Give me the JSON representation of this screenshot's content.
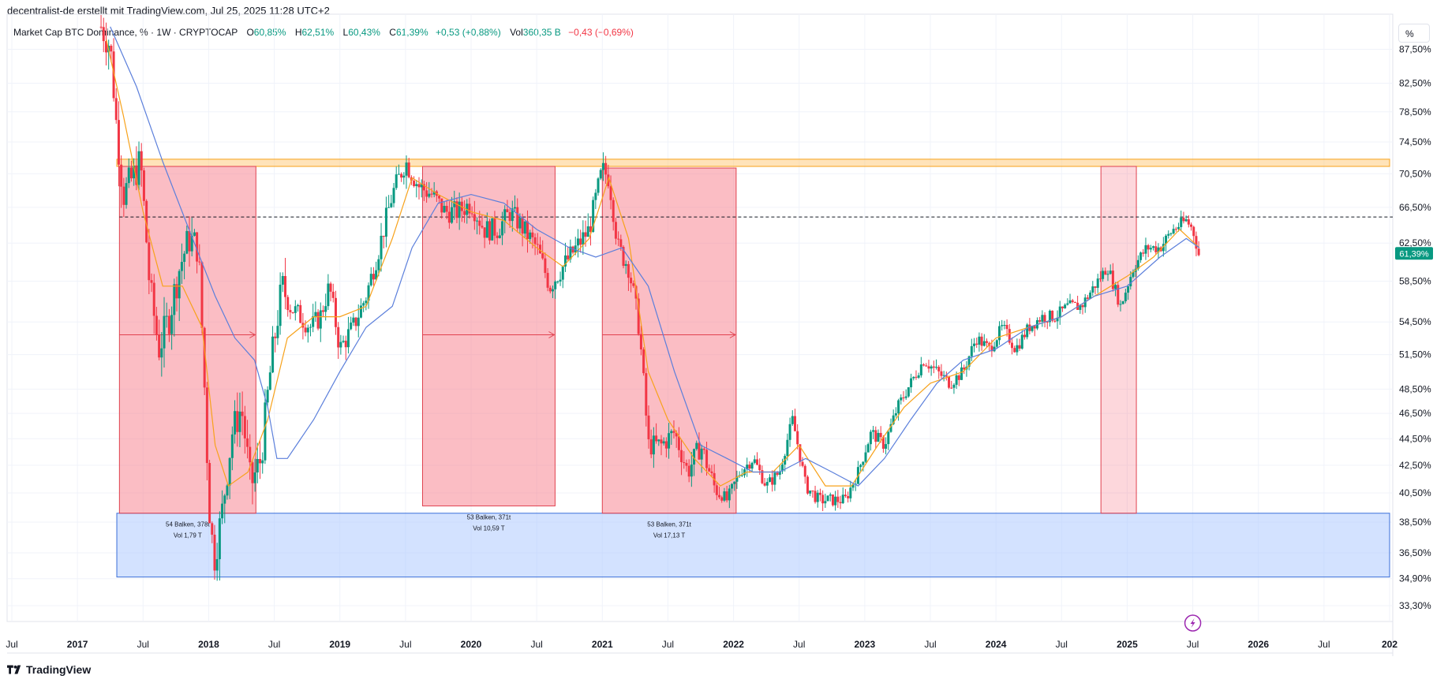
{
  "header": {
    "credit": "decentralist-de erstellt mit TradingView.com, Jul 25, 2025 11:28 UTC+2"
  },
  "legend": {
    "name": "Market Cap BTC Dominance, % · 1W · CRYPTOCAP",
    "o_label": "O",
    "o_value": "60,85%",
    "h_label": "H",
    "h_value": "62,51%",
    "l_label": "L",
    "l_value": "60,43%",
    "c_label": "C",
    "c_value": "61,39%",
    "change": "+0,53 (+0,88%)",
    "vol_label": "Vol",
    "vol_value": "360,35 B",
    "vol_change": "−0,43 (−0,69%)"
  },
  "scale_button": "%",
  "brand": "TradingView",
  "colors": {
    "up": "#089981",
    "down": "#f23645",
    "ma_fast": "#f7a21b",
    "ma_slow": "#5b7fdb",
    "red_zone": "#f77c8a",
    "orange_zone": "#ffcc80",
    "blue_zone": "#a8c5ff"
  },
  "chart_data": {
    "type": "candlestick",
    "y_axis": {
      "scale": "log",
      "ticks": [
        "87,50%",
        "82,50%",
        "78,50%",
        "74,50%",
        "70,50%",
        "66,50%",
        "62,50%",
        "58,50%",
        "54,50%",
        "51,50%",
        "48,50%",
        "46,50%",
        "44,50%",
        "42,50%",
        "40,50%",
        "38,50%",
        "36,50%",
        "34,90%",
        "33,30%"
      ],
      "tick_values": [
        87.5,
        82.5,
        78.5,
        74.5,
        70.5,
        66.5,
        62.5,
        58.5,
        54.5,
        51.5,
        48.5,
        46.5,
        44.5,
        42.5,
        40.5,
        38.5,
        36.5,
        34.9,
        33.3
      ]
    },
    "x_axis": {
      "ticks": [
        {
          "label": "Jul",
          "t": 2016.5,
          "bold": false
        },
        {
          "label": "2017",
          "t": 2017.0,
          "bold": true
        },
        {
          "label": "Jul",
          "t": 2017.5,
          "bold": false
        },
        {
          "label": "2018",
          "t": 2018.0,
          "bold": true
        },
        {
          "label": "Jul",
          "t": 2018.5,
          "bold": false
        },
        {
          "label": "2019",
          "t": 2019.0,
          "bold": true
        },
        {
          "label": "Jul",
          "t": 2019.5,
          "bold": false
        },
        {
          "label": "2020",
          "t": 2020.0,
          "bold": true
        },
        {
          "label": "Jul",
          "t": 2020.5,
          "bold": false
        },
        {
          "label": "2021",
          "t": 2021.0,
          "bold": true
        },
        {
          "label": "Jul",
          "t": 2021.5,
          "bold": false
        },
        {
          "label": "2022",
          "t": 2022.0,
          "bold": true
        },
        {
          "label": "Jul",
          "t": 2022.5,
          "bold": false
        },
        {
          "label": "2023",
          "t": 2023.0,
          "bold": true
        },
        {
          "label": "Jul",
          "t": 2023.5,
          "bold": false
        },
        {
          "label": "2024",
          "t": 2024.0,
          "bold": true
        },
        {
          "label": "Jul",
          "t": 2024.5,
          "bold": false
        },
        {
          "label": "2025",
          "t": 2025.0,
          "bold": true
        },
        {
          "label": "Jul",
          "t": 2025.5,
          "bold": false
        },
        {
          "label": "2026",
          "t": 2026.0,
          "bold": true
        },
        {
          "label": "Jul",
          "t": 2026.5,
          "bold": false
        },
        {
          "label": "202",
          "t": 2027.0,
          "bold": true
        }
      ]
    },
    "price_path": [
      [
        2017.18,
        91
      ],
      [
        2017.25,
        88
      ],
      [
        2017.3,
        76
      ],
      [
        2017.35,
        68
      ],
      [
        2017.42,
        70
      ],
      [
        2017.48,
        72
      ],
      [
        2017.55,
        58
      ],
      [
        2017.62,
        52
      ],
      [
        2017.7,
        55
      ],
      [
        2017.78,
        60
      ],
      [
        2017.85,
        63
      ],
      [
        2017.92,
        62
      ],
      [
        2018.0,
        40
      ],
      [
        2018.04,
        36
      ],
      [
        2018.1,
        39
      ],
      [
        2018.18,
        45
      ],
      [
        2018.25,
        47
      ],
      [
        2018.32,
        41
      ],
      [
        2018.4,
        43
      ],
      [
        2018.48,
        51
      ],
      [
        2018.56,
        58
      ],
      [
        2018.62,
        56
      ],
      [
        2018.7,
        55
      ],
      [
        2018.78,
        54
      ],
      [
        2018.85,
        55
      ],
      [
        2018.92,
        58
      ],
      [
        2019.0,
        52
      ],
      [
        2019.1,
        54
      ],
      [
        2019.2,
        57
      ],
      [
        2019.3,
        62
      ],
      [
        2019.4,
        68
      ],
      [
        2019.5,
        72
      ],
      [
        2019.6,
        69
      ],
      [
        2019.7,
        68
      ],
      [
        2019.8,
        66
      ],
      [
        2019.9,
        66
      ],
      [
        2020.0,
        67
      ],
      [
        2020.1,
        64
      ],
      [
        2020.2,
        64
      ],
      [
        2020.3,
        66
      ],
      [
        2020.4,
        64
      ],
      [
        2020.5,
        62
      ],
      [
        2020.6,
        58
      ],
      [
        2020.7,
        60
      ],
      [
        2020.8,
        62
      ],
      [
        2020.9,
        64
      ],
      [
        2021.0,
        71
      ],
      [
        2021.05,
        70
      ],
      [
        2021.12,
        62
      ],
      [
        2021.2,
        60
      ],
      [
        2021.28,
        54
      ],
      [
        2021.35,
        44
      ],
      [
        2021.45,
        44
      ],
      [
        2021.55,
        45
      ],
      [
        2021.65,
        42
      ],
      [
        2021.75,
        44
      ],
      [
        2021.85,
        41
      ],
      [
        2021.95,
        40
      ],
      [
        2022.05,
        42
      ],
      [
        2022.15,
        43
      ],
      [
        2022.25,
        41
      ],
      [
        2022.35,
        42
      ],
      [
        2022.45,
        46
      ],
      [
        2022.55,
        41
      ],
      [
        2022.65,
        40
      ],
      [
        2022.75,
        40
      ],
      [
        2022.85,
        40
      ],
      [
        2022.95,
        42
      ],
      [
        2023.05,
        45
      ],
      [
        2023.15,
        44
      ],
      [
        2023.25,
        47
      ],
      [
        2023.35,
        49
      ],
      [
        2023.45,
        51
      ],
      [
        2023.55,
        50
      ],
      [
        2023.65,
        49
      ],
      [
        2023.75,
        50
      ],
      [
        2023.85,
        53
      ],
      [
        2023.95,
        52
      ],
      [
        2024.05,
        54
      ],
      [
        2024.15,
        52
      ],
      [
        2024.25,
        54
      ],
      [
        2024.35,
        55
      ],
      [
        2024.45,
        55
      ],
      [
        2024.55,
        56
      ],
      [
        2024.65,
        56
      ],
      [
        2024.75,
        58
      ],
      [
        2024.85,
        60
      ],
      [
        2024.95,
        56
      ],
      [
        2025.05,
        60
      ],
      [
        2025.15,
        62
      ],
      [
        2025.25,
        62
      ],
      [
        2025.35,
        64
      ],
      [
        2025.45,
        65
      ],
      [
        2025.5,
        64
      ],
      [
        2025.55,
        61
      ]
    ],
    "ma_fast_path": [
      [
        2017.22,
        89
      ],
      [
        2017.35,
        78
      ],
      [
        2017.5,
        66
      ],
      [
        2017.65,
        58
      ],
      [
        2017.8,
        58
      ],
      [
        2017.95,
        54
      ],
      [
        2018.05,
        44
      ],
      [
        2018.15,
        41
      ],
      [
        2018.3,
        42
      ],
      [
        2018.45,
        46
      ],
      [
        2018.6,
        53
      ],
      [
        2018.8,
        55
      ],
      [
        2019.0,
        55
      ],
      [
        2019.2,
        56
      ],
      [
        2019.4,
        63
      ],
      [
        2019.55,
        70
      ],
      [
        2019.75,
        68
      ],
      [
        2020.0,
        66
      ],
      [
        2020.25,
        65
      ],
      [
        2020.5,
        62
      ],
      [
        2020.7,
        60
      ],
      [
        2020.9,
        63
      ],
      [
        2021.05,
        70
      ],
      [
        2021.2,
        63
      ],
      [
        2021.35,
        50
      ],
      [
        2021.5,
        46
      ],
      [
        2021.7,
        43
      ],
      [
        2021.9,
        41
      ],
      [
        2022.1,
        42
      ],
      [
        2022.3,
        42
      ],
      [
        2022.5,
        44
      ],
      [
        2022.7,
        41
      ],
      [
        2022.9,
        41
      ],
      [
        2023.1,
        44
      ],
      [
        2023.3,
        47
      ],
      [
        2023.5,
        49
      ],
      [
        2023.75,
        50
      ],
      [
        2024.0,
        53
      ],
      [
        2024.25,
        54
      ],
      [
        2024.5,
        55
      ],
      [
        2024.75,
        57
      ],
      [
        2025.0,
        59
      ],
      [
        2025.2,
        61
      ],
      [
        2025.4,
        64
      ],
      [
        2025.55,
        62
      ]
    ],
    "ma_slow_path": [
      [
        2017.25,
        91
      ],
      [
        2017.45,
        82
      ],
      [
        2017.65,
        72
      ],
      [
        2017.85,
        64
      ],
      [
        2018.05,
        57
      ],
      [
        2018.2,
        53
      ],
      [
        2018.35,
        51
      ],
      [
        2018.45,
        47
      ],
      [
        2018.52,
        43
      ],
      [
        2018.6,
        43
      ],
      [
        2018.8,
        46
      ],
      [
        2019.0,
        50
      ],
      [
        2019.2,
        54
      ],
      [
        2019.4,
        56
      ],
      [
        2019.55,
        62
      ],
      [
        2019.75,
        67
      ],
      [
        2020.0,
        68
      ],
      [
        2020.25,
        67
      ],
      [
        2020.5,
        64
      ],
      [
        2020.75,
        62
      ],
      [
        2020.95,
        61
      ],
      [
        2021.15,
        62
      ],
      [
        2021.35,
        58
      ],
      [
        2021.55,
        50
      ],
      [
        2021.75,
        44
      ],
      [
        2021.95,
        43
      ],
      [
        2022.15,
        42
      ],
      [
        2022.35,
        42
      ],
      [
        2022.55,
        43
      ],
      [
        2022.75,
        42
      ],
      [
        2022.95,
        41
      ],
      [
        2023.15,
        43
      ],
      [
        2023.35,
        46
      ],
      [
        2023.55,
        49
      ],
      [
        2023.75,
        51
      ],
      [
        2024.0,
        52
      ],
      [
        2024.25,
        54
      ],
      [
        2024.5,
        55
      ],
      [
        2024.75,
        57
      ],
      [
        2025.0,
        58
      ],
      [
        2025.25,
        61
      ],
      [
        2025.45,
        63
      ],
      [
        2025.55,
        62
      ]
    ],
    "zones": {
      "orange_band": {
        "t0": 2017.3,
        "t1": 2027.0,
        "y_top": 72.3,
        "y_bottom": 71.4
      },
      "blue_band": {
        "t0": 2017.3,
        "t1": 2027.0,
        "y_top": 39.1,
        "y_bottom": 35.0
      },
      "red_boxes": [
        {
          "t0": 2017.32,
          "t1": 2018.36,
          "y_top": 71.4,
          "y_bottom": 39.1,
          "label1": "54 Balken, 378t",
          "label2": "Vol 1,79 T"
        },
        {
          "t0": 2019.63,
          "t1": 2020.64,
          "y_top": 71.4,
          "y_bottom": 39.6,
          "label1": "53 Balken, 371t",
          "label2": "Vol 10,59 T"
        },
        {
          "t0": 2021.0,
          "t1": 2022.02,
          "y_top": 71.2,
          "y_bottom": 39.1,
          "label1": "53 Balken, 371t",
          "label2": "Vol 17,13 T"
        },
        {
          "t0": 2024.8,
          "t1": 2025.07,
          "y_top": 71.4,
          "y_bottom": 39.1,
          "label1": "",
          "label2": ""
        }
      ],
      "dashed_level": 65.4,
      "arrow_level": 53.3
    },
    "last_price": {
      "value": 61.39,
      "label": "61,39%"
    }
  }
}
